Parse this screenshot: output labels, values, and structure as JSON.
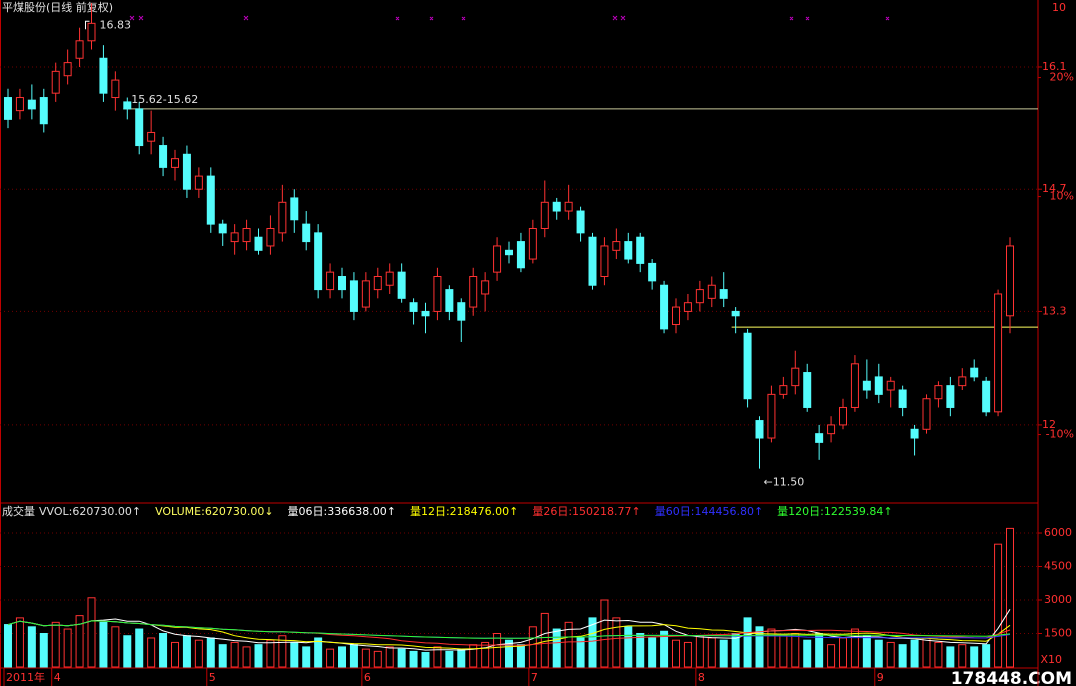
{
  "chart_data": {
    "type": "candlestick",
    "title": "平煤股份(日线 前复权)",
    "corner_label": "10",
    "categories": [
      "2011年",
      null,
      null,
      null,
      "4",
      null,
      null,
      null,
      null,
      null,
      null,
      null,
      null,
      null,
      null,
      null,
      null,
      "5",
      null,
      null,
      null,
      null,
      null,
      null,
      null,
      null,
      null,
      null,
      null,
      null,
      "6",
      null,
      null,
      null,
      null,
      null,
      null,
      null,
      null,
      null,
      null,
      null,
      null,
      null,
      "7",
      null,
      null,
      null,
      null,
      null,
      null,
      null,
      null,
      null,
      null,
      null,
      null,
      null,
      "8",
      null,
      null,
      null,
      null,
      null,
      null,
      null,
      null,
      null,
      null,
      null,
      null,
      null,
      null,
      "9",
      null,
      null,
      null,
      null,
      null,
      null,
      null,
      null,
      null,
      null,
      null
    ],
    "open": [
      15.75,
      15.6,
      15.72,
      15.75,
      15.8,
      16.0,
      16.2,
      16.4,
      16.2,
      15.75,
      15.7,
      15.62,
      15.25,
      15.2,
      14.95,
      15.1,
      14.7,
      14.85,
      14.3,
      14.1,
      14.1,
      14.15,
      14.05,
      14.2,
      14.6,
      14.3,
      14.2,
      13.55,
      13.7,
      13.65,
      13.35,
      13.55,
      13.6,
      13.75,
      13.4,
      13.3,
      13.3,
      13.55,
      13.4,
      13.35,
      13.5,
      13.75,
      14.0,
      14.1,
      13.9,
      14.25,
      14.55,
      14.45,
      14.45,
      14.15,
      13.7,
      14.0,
      14.1,
      14.15,
      13.85,
      13.6,
      13.15,
      13.3,
      13.4,
      13.45,
      13.55,
      13.3,
      13.05,
      12.05,
      11.85,
      12.35,
      12.45,
      12.6,
      11.9,
      11.9,
      12.0,
      12.2,
      12.5,
      12.55,
      12.4,
      12.4,
      11.95,
      11.95,
      12.3,
      12.45,
      12.45,
      12.65,
      12.5,
      12.15,
      13.25
    ],
    "high": [
      15.85,
      15.85,
      15.9,
      15.85,
      16.15,
      16.3,
      16.55,
      16.83,
      16.35,
      16.05,
      15.75,
      15.7,
      15.6,
      15.3,
      15.15,
      15.2,
      14.95,
      14.95,
      14.35,
      14.3,
      14.35,
      14.25,
      14.4,
      14.75,
      14.7,
      14.45,
      14.3,
      13.85,
      13.8,
      13.75,
      13.75,
      13.8,
      13.85,
      13.85,
      13.45,
      13.4,
      13.8,
      13.6,
      13.45,
      13.8,
      13.75,
      14.15,
      14.1,
      14.2,
      14.35,
      14.8,
      14.6,
      14.75,
      14.5,
      14.2,
      14.15,
      14.25,
      14.2,
      14.2,
      13.9,
      13.65,
      13.45,
      13.5,
      13.65,
      13.7,
      13.75,
      13.35,
      13.1,
      12.1,
      12.45,
      12.55,
      12.85,
      12.7,
      12.0,
      12.1,
      12.3,
      12.8,
      12.75,
      12.7,
      12.55,
      12.45,
      12.0,
      12.35,
      12.5,
      12.55,
      12.65,
      12.75,
      12.55,
      13.55,
      14.15
    ],
    "low": [
      15.4,
      15.5,
      15.5,
      15.35,
      15.7,
      15.9,
      16.1,
      16.3,
      15.7,
      15.6,
      15.5,
      15.1,
      15.1,
      14.85,
      14.8,
      14.6,
      14.6,
      14.2,
      14.05,
      13.95,
      14.0,
      13.95,
      13.95,
      14.1,
      14.2,
      14.0,
      13.45,
      13.45,
      13.45,
      13.2,
      13.3,
      13.45,
      13.5,
      13.4,
      13.15,
      13.05,
      13.2,
      13.2,
      12.95,
      13.25,
      13.3,
      13.65,
      13.85,
      13.75,
      13.85,
      14.15,
      14.35,
      14.35,
      14.1,
      13.55,
      13.6,
      13.9,
      13.85,
      13.75,
      13.55,
      13.05,
      13.05,
      13.2,
      13.3,
      13.35,
      13.35,
      13.05,
      12.2,
      11.5,
      11.8,
      12.3,
      12.35,
      12.15,
      11.6,
      11.8,
      11.95,
      12.15,
      12.3,
      12.25,
      12.2,
      12.1,
      11.65,
      11.9,
      12.2,
      12.1,
      12.4,
      12.5,
      12.1,
      12.1,
      13.05
    ],
    "close": [
      15.5,
      15.75,
      15.62,
      15.45,
      16.05,
      16.15,
      16.4,
      16.6,
      15.8,
      15.95,
      15.62,
      15.2,
      15.35,
      14.95,
      15.05,
      14.7,
      14.85,
      14.3,
      14.2,
      14.2,
      14.25,
      14.0,
      14.25,
      14.55,
      14.35,
      14.1,
      13.55,
      13.75,
      13.55,
      13.3,
      13.65,
      13.7,
      13.75,
      13.45,
      13.3,
      13.25,
      13.7,
      13.3,
      13.2,
      13.7,
      13.65,
      14.05,
      13.95,
      13.8,
      14.25,
      14.55,
      14.45,
      14.55,
      14.2,
      13.6,
      14.05,
      14.1,
      13.9,
      13.85,
      13.65,
      13.1,
      13.35,
      13.4,
      13.55,
      13.6,
      13.45,
      13.25,
      12.3,
      11.85,
      12.35,
      12.45,
      12.65,
      12.2,
      11.8,
      12.0,
      12.2,
      12.7,
      12.4,
      12.35,
      12.5,
      12.2,
      11.85,
      12.3,
      12.45,
      12.2,
      12.55,
      12.55,
      12.15,
      13.5,
      14.05
    ],
    "volume": [
      1900,
      2200,
      1800,
      1500,
      2000,
      1700,
      2300,
      3100,
      2000,
      1800,
      1400,
      1700,
      1300,
      1500,
      1100,
      1400,
      1200,
      1300,
      1000,
      1100,
      900,
      1000,
      1200,
      1400,
      1100,
      900,
      1300,
      800,
      900,
      1000,
      800,
      700,
      900,
      800,
      700,
      650,
      900,
      700,
      800,
      1000,
      1100,
      1500,
      1200,
      1000,
      1800,
      2400,
      1700,
      2000,
      1300,
      2200,
      3000,
      2200,
      1800,
      1500,
      1300,
      1600,
      1200,
      1100,
      1400,
      1300,
      1200,
      1500,
      2200,
      1800,
      1700,
      1400,
      1500,
      1200,
      1500,
      1000,
      1300,
      1700,
      1400,
      1200,
      1100,
      1000,
      1200,
      1300,
      1100,
      900,
      1000,
      900,
      1000,
      5500,
      6207
    ],
    "up_color": "#ff3232",
    "down_color": "#54fcfc",
    "ylim": [
      11.14,
      16.81
    ],
    "yticks": [
      16.1,
      14.7,
      13.3,
      12.0
    ],
    "y2lim": [
      -15.5,
      26.1
    ],
    "y2ticks": [
      {
        "value": 20,
        "label": "20%"
      },
      {
        "value": 10,
        "label": "10%"
      },
      {
        "value": -10,
        "label": "-10%"
      }
    ],
    "vol_ylim": [
      0,
      7210
    ],
    "vol_yticks": [
      1500,
      3000,
      4500,
      6000
    ],
    "vol_unit": "X10",
    "vol_ma": [
      {
        "period": 6,
        "color": "#ffffff"
      },
      {
        "period": 12,
        "color": "#ffff00"
      },
      {
        "period": 26,
        "color": "#ff3030"
      },
      {
        "period": 60,
        "color": "#3030ff"
      },
      {
        "period": 120,
        "color": "#30ff30"
      }
    ],
    "vol_legend": [
      {
        "label": "成交量",
        "color": "#e0e0e0"
      },
      {
        "label": "VVOL:620730.00↑",
        "color": "#e0e0e0"
      },
      {
        "label": "VOLUME:620730.00↓",
        "color": "#ffff60"
      },
      {
        "label": "量06日:336638.00↑",
        "color": "#ffffff"
      },
      {
        "label": "量12日:218476.00↑",
        "color": "#ffff00"
      },
      {
        "label": "量26日:150218.77↑",
        "color": "#ff3030"
      },
      {
        "label": "量60日:144456.80↑",
        "color": "#3030ff"
      },
      {
        "label": "量120日:122539.84↑",
        "color": "#30ff30"
      }
    ],
    "hlines": [
      {
        "value": 15.62,
        "start_index": 10,
        "color": "#c8c89a"
      },
      {
        "value": 13.12,
        "start_index": 61,
        "color": "#ffff60"
      }
    ],
    "annotations": [
      {
        "text": "16.83",
        "index": 7,
        "price": 16.83
      },
      {
        "text": "15.62-15.62",
        "index": 10,
        "price": 15.62
      },
      {
        "text": "←11.50",
        "index": 63,
        "price": 11.5
      }
    ],
    "watermark": "178448.COM"
  }
}
